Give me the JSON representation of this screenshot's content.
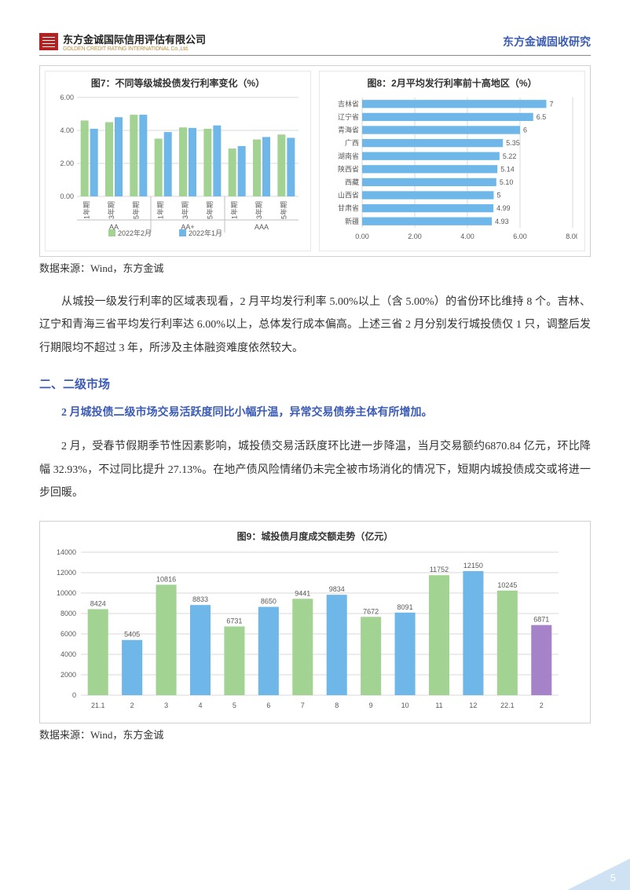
{
  "header": {
    "logo_cn": "东方金诚国际信用评估有限公司",
    "logo_en": "GOLDEN CREDIT RATING INTERNATIONAL Co.,Ltd.",
    "right": "东方金诚固收研究"
  },
  "chart7": {
    "title": "图7：不同等级城投债发行利率变化（%）",
    "type": "bar",
    "ylim": [
      0,
      6
    ],
    "ytick_step": 2,
    "groups": [
      "AA",
      "AA+",
      "AAA"
    ],
    "sub_labels": [
      "1年期",
      "3年期",
      "5年期"
    ],
    "series": [
      {
        "name": "2022年2月",
        "color": "#a3d393",
        "values": [
          4.6,
          4.5,
          4.95,
          3.5,
          4.18,
          4.1,
          2.9,
          3.45,
          3.75
        ]
      },
      {
        "name": "2022年1月",
        "color": "#6fb7e8",
        "values": [
          4.1,
          4.8,
          4.95,
          3.9,
          4.15,
          4.3,
          3.05,
          3.6,
          3.55
        ]
      }
    ],
    "grid_color": "#d9d9d9",
    "background_color": "#ffffff"
  },
  "chart8": {
    "title": "图8：2月平均发行利率前十高地区（%）",
    "type": "hbar",
    "xlim": [
      0,
      8
    ],
    "xtick_step": 2,
    "categories": [
      "吉林省",
      "辽宁省",
      "青海省",
      "广西",
      "湖南省",
      "陕西省",
      "西藏",
      "山西省",
      "甘肃省",
      "新疆"
    ],
    "values": [
      7,
      6.5,
      6.0,
      5.35,
      5.22,
      5.14,
      5.1,
      5.0,
      4.99,
      4.93
    ],
    "bar_color": "#6fb7e8",
    "grid_color": "#d9d9d9",
    "label_color": "#595959"
  },
  "source_note": "数据来源：Wind，东方金诚",
  "para1": "从城投一级发行利率的区域表现看，2 月平均发行利率 5.00%以上（含 5.00%）的省份环比维持 8 个。吉林、辽宁和青海三省平均发行利率达 6.00%以上，总体发行成本偏高。上述三省 2 月分别发行城投债仅 1 只，调整后发行期限均不超过 3 年，所涉及主体融资难度依然较大。",
  "section2_h": "二、二级市场",
  "section2_bold": "2 月城投债二级市场交易活跃度同比小幅升温，异常交易债券主体有所增加。",
  "para2": "2 月，受春节假期季节性因素影响，城投债交易活跃度环比进一步降温，当月交易额约6870.84 亿元，环比降幅 32.93%，不过同比提升 27.13%。在地产债风险情绪仍未完全被市场消化的情况下，短期内城投债成交或将进一步回暖。",
  "chart9": {
    "title": "图9：城投债月度成交额走势（亿元）",
    "type": "bar",
    "ylim": [
      0,
      14000
    ],
    "ytick_step": 2000,
    "categories": [
      "21.1",
      "2",
      "3",
      "4",
      "5",
      "6",
      "7",
      "8",
      "9",
      "10",
      "11",
      "12",
      "22.1",
      "2"
    ],
    "values": [
      8424,
      5405,
      10816,
      8833,
      6731,
      8650,
      9441,
      9834,
      7672,
      8091,
      11752,
      12150,
      10245,
      6871
    ],
    "bar_colors": [
      "#a3d393",
      "#6fb7e8",
      "#a3d393",
      "#6fb7e8",
      "#a3d393",
      "#6fb7e8",
      "#a3d393",
      "#6fb7e8",
      "#a3d393",
      "#6fb7e8",
      "#a3d393",
      "#6fb7e8",
      "#a3d393",
      "#a683c9"
    ],
    "grid_color": "#d9d9d9",
    "label_color": "#595959"
  },
  "page_number": "5"
}
